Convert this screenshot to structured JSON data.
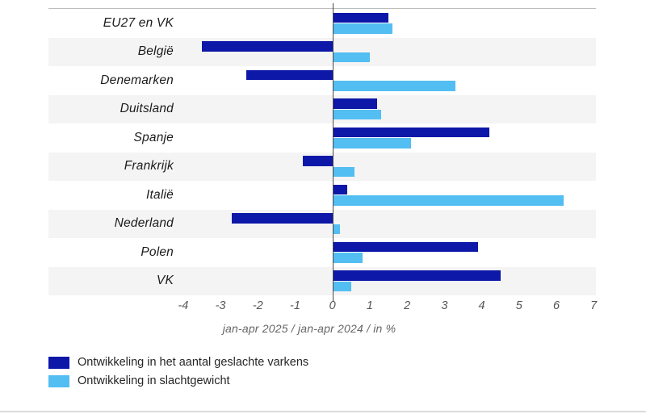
{
  "chart_data": {
    "type": "bar",
    "orientation": "horizontal",
    "title": "",
    "categories": [
      "EU27 en VK",
      "België",
      "Denemarken",
      "Duitsland",
      "Spanje",
      "Frankrijk",
      "Italië",
      "Nederland",
      "Polen",
      "VK"
    ],
    "series": [
      {
        "name": "Ontwikkeling in het aantal geslachte varkens",
        "color": "#0d18a8",
        "values": [
          1.5,
          -3.5,
          -2.3,
          1.2,
          4.2,
          -0.8,
          0.4,
          -2.7,
          3.9,
          4.5
        ]
      },
      {
        "name": "Ontwikkeling in slachtgewicht",
        "color": "#53bef2",
        "values": [
          1.6,
          1.0,
          3.3,
          1.3,
          2.1,
          0.6,
          6.2,
          0.2,
          0.8,
          0.5
        ]
      }
    ],
    "xlabel": "jan-apr 2025 / jan-apr 2024 / in %",
    "x_ticks": [
      -4,
      -3,
      -2,
      -1,
      0,
      1,
      2,
      3,
      4,
      5,
      6,
      7
    ],
    "xlim": [
      -7.61,
      7.06
    ],
    "grid": true,
    "legend_position": "bottom-left",
    "stripe_color": "#f4f4f4",
    "axis_line_color": "#bdbdbd",
    "zero_line_color": "#4a4a4a"
  }
}
